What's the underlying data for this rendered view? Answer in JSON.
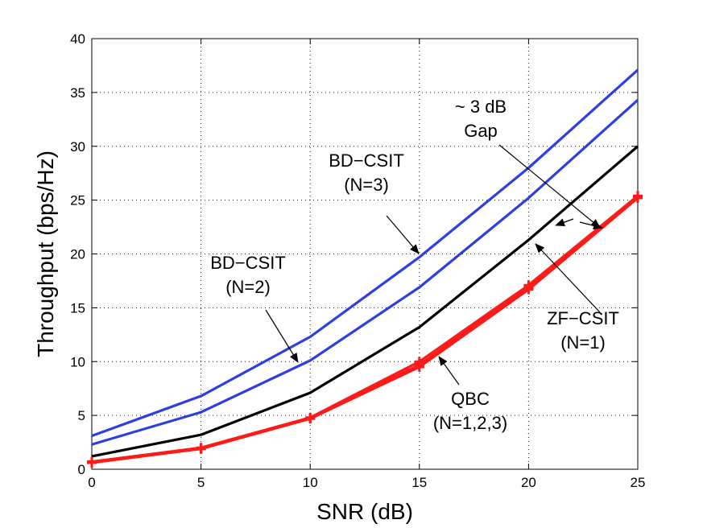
{
  "chart_data": {
    "type": "line",
    "xlabel": "SNR (dB)",
    "ylabel": "Throughput (bps/Hz)",
    "xlim": [
      0,
      25
    ],
    "ylim": [
      0,
      40
    ],
    "xticks": [
      0,
      5,
      10,
      15,
      20,
      25
    ],
    "yticks": [
      0,
      5,
      10,
      15,
      20,
      25,
      30,
      35,
      40
    ],
    "grid": true,
    "x": [
      0,
      5,
      10,
      15,
      20,
      25
    ],
    "series": [
      {
        "name": "BD-CSIT (N=3)",
        "color": "#2e3fe0",
        "marker": "none",
        "values": [
          3.1,
          6.8,
          12.3,
          19.7,
          28.0,
          37.1
        ]
      },
      {
        "name": "BD-CSIT (N=2)",
        "color": "#2e3fe0",
        "marker": "none",
        "values": [
          2.3,
          5.3,
          10.1,
          16.9,
          25.2,
          34.3
        ]
      },
      {
        "name": "ZF-CSIT (N=1)",
        "color": "#000000",
        "marker": "none",
        "values": [
          1.2,
          3.2,
          7.1,
          13.2,
          21.3,
          30.0
        ]
      },
      {
        "name": "QBC (N=1)",
        "color": "#ff1a1a",
        "marker": "plus",
        "values": [
          0.6,
          1.9,
          4.7,
          9.5,
          16.7,
          25.2
        ]
      },
      {
        "name": "QBC (N=2)",
        "color": "#ff1a1a",
        "marker": "plus",
        "values": [
          0.7,
          1.9,
          4.7,
          9.7,
          16.9,
          25.3
        ]
      },
      {
        "name": "QBC (N=3)",
        "color": "#ff1a1a",
        "marker": "plus",
        "values": [
          0.7,
          2.0,
          4.8,
          10.0,
          17.1,
          25.4
        ]
      }
    ],
    "annotations": [
      {
        "lines": [
          "BD−CSIT",
          "(N=3)"
        ]
      },
      {
        "lines": [
          "BD−CSIT",
          "(N=2)"
        ]
      },
      {
        "lines": [
          "~ 3 dB",
          "Gap"
        ]
      },
      {
        "lines": [
          "ZF−CSIT",
          "(N=1)"
        ]
      },
      {
        "lines": [
          "QBC",
          "(N=1,2,3)"
        ]
      }
    ]
  }
}
